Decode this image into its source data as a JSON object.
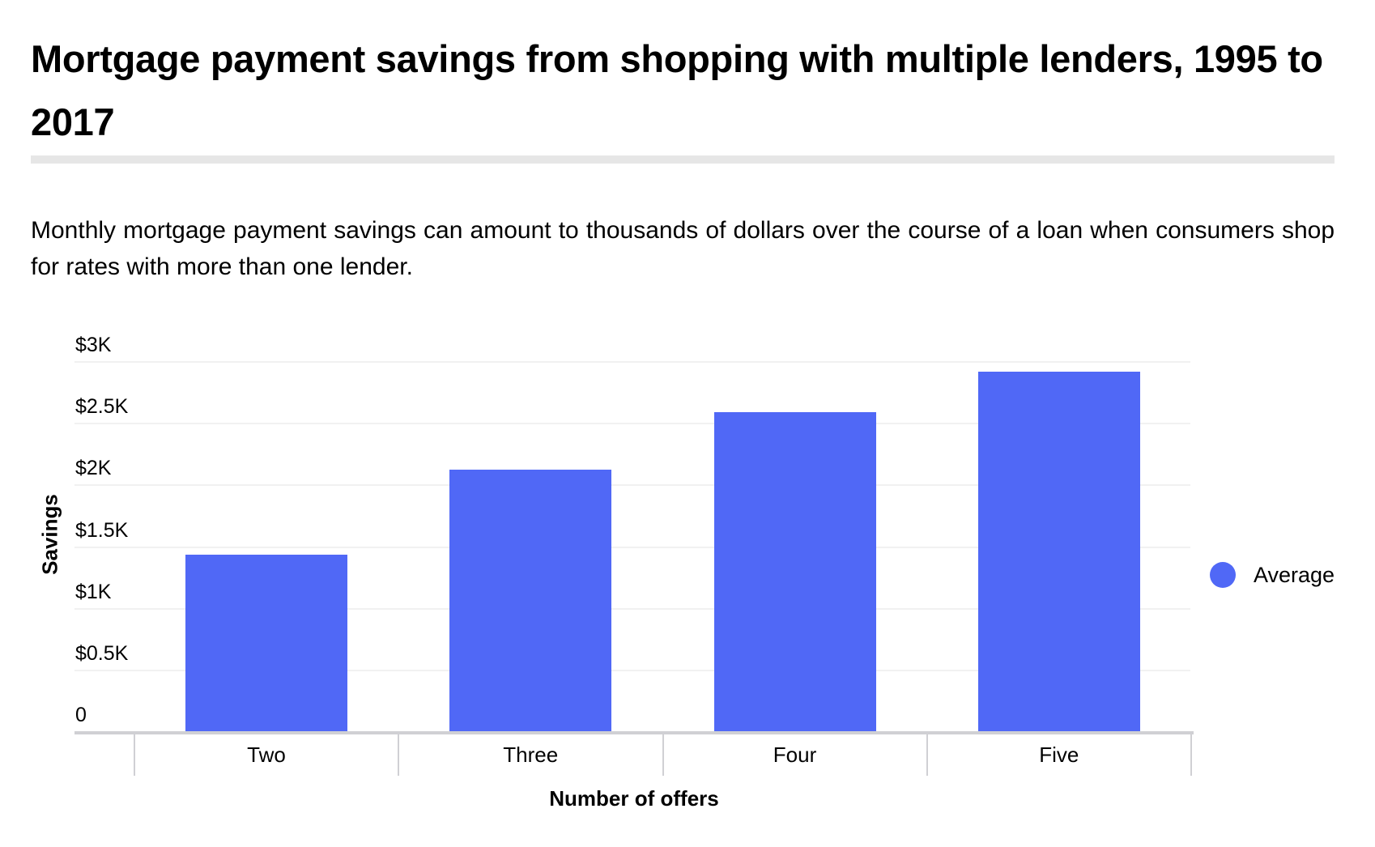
{
  "header": {
    "title": "Mortgage payment savings from shopping with multiple lenders, 1995 to 2017",
    "description": "Monthly mortgage payment savings can amount to thousands of dollars over the course of a loan when consumers shop for rates with more than one lender."
  },
  "colors": {
    "bar": "#5068F6",
    "grid": "#f1f1f1",
    "axis": "#d0d0d4",
    "rule": "#e6e6e6"
  },
  "chart_data": {
    "type": "bar",
    "title": "Mortgage payment savings from shopping with multiple lenders, 1995 to 2017",
    "xlabel": "Number of offers",
    "ylabel": "Savings",
    "categories": [
      "Two",
      "Three",
      "Four",
      "Five"
    ],
    "series": [
      {
        "name": "Average",
        "color": "#5068F6",
        "values": [
          1440,
          2130,
          2590,
          2920
        ]
      }
    ],
    "ylim": [
      0,
      3000
    ],
    "yticks": [
      0,
      500,
      1000,
      1500,
      2000,
      2500,
      3000
    ],
    "ytick_labels": [
      "0",
      "$0.5K",
      "$1K",
      "$1.5K",
      "$2K",
      "$2.5K",
      "$3K"
    ],
    "grid": true,
    "legend_position": "right"
  }
}
